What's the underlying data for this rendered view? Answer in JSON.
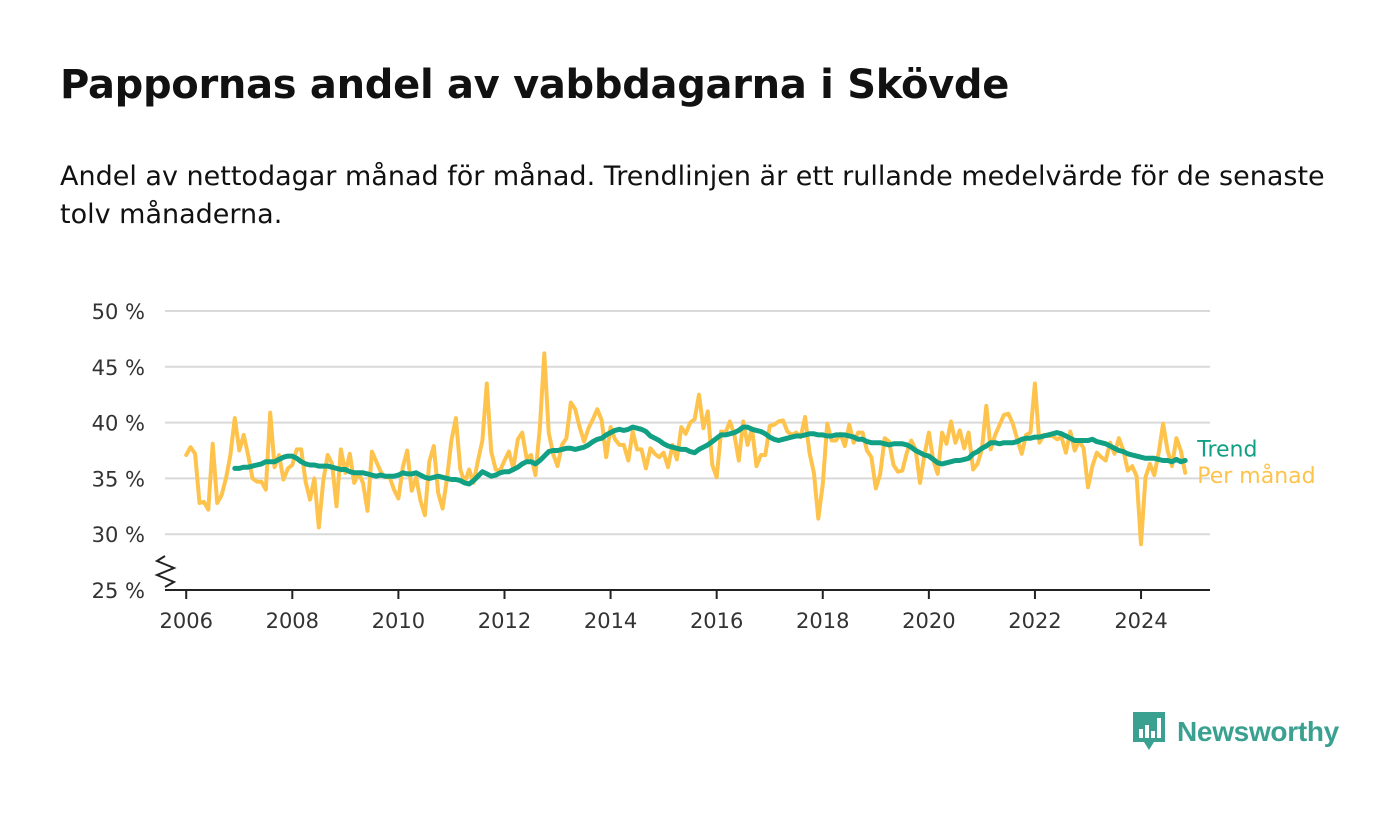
{
  "title": "Pappornas andel av vabbdagarna i Skövde",
  "subtitle": "Andel av nettodagar månad för månad. Trendlinjen är ett rullande medelvärde för de senaste tolv månaderna.",
  "brand": {
    "name": "Newsworthy",
    "color": "#3aa190"
  },
  "chart_data": {
    "type": "line",
    "y_ticks": [
      "25 %",
      "30 %",
      "35 %",
      "40 %",
      "45 %",
      "50 %"
    ],
    "ylim": [
      25,
      50
    ],
    "xlim": [
      2005.6,
      2025.3
    ],
    "x_ticks": [
      "2006",
      "2008",
      "2010",
      "2012",
      "2014",
      "2016",
      "2018",
      "2020",
      "2022",
      "2024"
    ],
    "grid": true,
    "y_axis_break": true,
    "series": [
      {
        "name": "Per månad",
        "color": "#fec34c",
        "start": 2006.0,
        "step": 0.0833333,
        "values": [
          37.1,
          37.8,
          37.2,
          32.8,
          32.9,
          32.2,
          38.1,
          32.8,
          33.5,
          35,
          37.1,
          40.4,
          37.5,
          38.9,
          37.1,
          35,
          34.7,
          34.7,
          34,
          40.9,
          36,
          37.1,
          34.9,
          35.9,
          36.2,
          37.6,
          37.6,
          34.7,
          33.1,
          35,
          30.6,
          34.8,
          37.1,
          36.3,
          32.5,
          37.6,
          35.5,
          37.2,
          34.6,
          35.5,
          34.6,
          32.1,
          37.4,
          36.5,
          35.6,
          35.1,
          35.1,
          34,
          33.2,
          36,
          37.5,
          33.9,
          35.1,
          33,
          31.7,
          36.5,
          37.9,
          33.7,
          32.3,
          35,
          38.4,
          40.4,
          35.8,
          34.6,
          35.8,
          34.6,
          36.6,
          38.4,
          43.5,
          37.4,
          35.8,
          35.7,
          36.6,
          37.4,
          35.9,
          38.5,
          39.1,
          36.8,
          37.1,
          35.3,
          39.6,
          46.2,
          39.1,
          37.2,
          36.1,
          38,
          38.6,
          41.8,
          41.2,
          39.6,
          38.3,
          39.5,
          40.3,
          41.2,
          40.2,
          36.9,
          39.6,
          38.5,
          38,
          38,
          36.6,
          39.2,
          37.6,
          37.6,
          35.9,
          37.7,
          37.2,
          36.9,
          37.3,
          36,
          38,
          36.7,
          39.6,
          39,
          40,
          40.3,
          42.5,
          39.5,
          41,
          36.2,
          35.1,
          39.2,
          39.1,
          40.1,
          38.9,
          36.6,
          40.1,
          38,
          39.5,
          36.1,
          37.1,
          37.1,
          39.7,
          39.8,
          40.1,
          40.2,
          39.2,
          38.9,
          39.1,
          38.7,
          40.5,
          37.3,
          35.5,
          31.4,
          34.5,
          39.9,
          38.4,
          38.4,
          39,
          37.9,
          39.8,
          38.2,
          39.1,
          39.1,
          37.5,
          36.9,
          34.1,
          35.4,
          38.6,
          38.3,
          36.2,
          35.6,
          35.7,
          37.3,
          38.4,
          37.6,
          34.6,
          37.1,
          39.1,
          36.6,
          35.4,
          39.1,
          38.1,
          40.1,
          38.2,
          39.3,
          37.7,
          39.1,
          35.8,
          36.3,
          37.6,
          41.5,
          37.6,
          38.9,
          39.8,
          40.7,
          40.8,
          39.9,
          38.5,
          37.2,
          38.9,
          39.1,
          43.5,
          38.2,
          38.9,
          38.8,
          38.8,
          38.5,
          38.7,
          37.3,
          39.2,
          37.5,
          38.4,
          37.7,
          34.2,
          36.1,
          37.3,
          36.9,
          36.6,
          38.2,
          37.2,
          38.6,
          37.5,
          35.7,
          36.1,
          35.2,
          29.1,
          35.1,
          36.3,
          35.3,
          37.3,
          39.9,
          37.5,
          36.1,
          38.6,
          37.5,
          35.5
        ]
      },
      {
        "name": "Trend",
        "color": "#11a084",
        "start": 2006.9167,
        "step": 0.0833333,
        "values": [
          35.9,
          35.9,
          36,
          36,
          36.1,
          36.2,
          36.3,
          36.5,
          36.5,
          36.5,
          36.7,
          36.9,
          37,
          37,
          36.8,
          36.5,
          36.3,
          36.2,
          36.2,
          36.1,
          36.1,
          36.1,
          36,
          35.9,
          35.8,
          35.8,
          35.6,
          35.5,
          35.5,
          35.5,
          35.4,
          35.3,
          35.2,
          35.3,
          35.2,
          35.2,
          35.2,
          35.3,
          35.5,
          35.4,
          35.4,
          35.5,
          35.3,
          35.1,
          35,
          35.1,
          35.2,
          35.1,
          35,
          34.9,
          34.9,
          34.8,
          34.6,
          34.5,
          34.8,
          35.2,
          35.6,
          35.4,
          35.2,
          35.3,
          35.5,
          35.6,
          35.6,
          35.8,
          36,
          36.3,
          36.5,
          36.5,
          36.3,
          36.6,
          37,
          37.4,
          37.5,
          37.5,
          37.6,
          37.7,
          37.7,
          37.6,
          37.7,
          37.8,
          38,
          38.3,
          38.5,
          38.6,
          38.9,
          39.1,
          39.3,
          39.4,
          39.3,
          39.4,
          39.6,
          39.5,
          39.4,
          39.2,
          38.8,
          38.6,
          38.4,
          38.1,
          37.9,
          37.8,
          37.7,
          37.6,
          37.6,
          37.4,
          37.3,
          37.6,
          37.8,
          38,
          38.3,
          38.6,
          38.9,
          38.9,
          39,
          39.1,
          39.3,
          39.6,
          39.6,
          39.4,
          39.3,
          39.2,
          39,
          38.7,
          38.5,
          38.4,
          38.5,
          38.6,
          38.7,
          38.8,
          38.8,
          38.9,
          39,
          39,
          38.9,
          38.9,
          38.8,
          38.8,
          38.9,
          38.9,
          38.9,
          38.8,
          38.7,
          38.5,
          38.5,
          38.3,
          38.2,
          38.2,
          38.2,
          38.1,
          38,
          38.1,
          38.1,
          38.1,
          38,
          37.8,
          37.5,
          37.3,
          37.1,
          37,
          36.7,
          36.4,
          36.3,
          36.4,
          36.5,
          36.6,
          36.6,
          36.7,
          36.8,
          37.2,
          37.4,
          37.7,
          37.9,
          38.2,
          38.2,
          38.1,
          38.2,
          38.2,
          38.2,
          38.3,
          38.5,
          38.6,
          38.6,
          38.7,
          38.7,
          38.8,
          38.9,
          39,
          39.1,
          39,
          38.8,
          38.6,
          38.4,
          38.4,
          38.4,
          38.4,
          38.5,
          38.3,
          38.2,
          38.1,
          37.9,
          37.7,
          37.5,
          37.4,
          37.2,
          37.1,
          37,
          36.9,
          36.8,
          36.8,
          36.8,
          36.7,
          36.6,
          36.6,
          36.5,
          36.7,
          36.5,
          36.6
        ]
      }
    ]
  }
}
